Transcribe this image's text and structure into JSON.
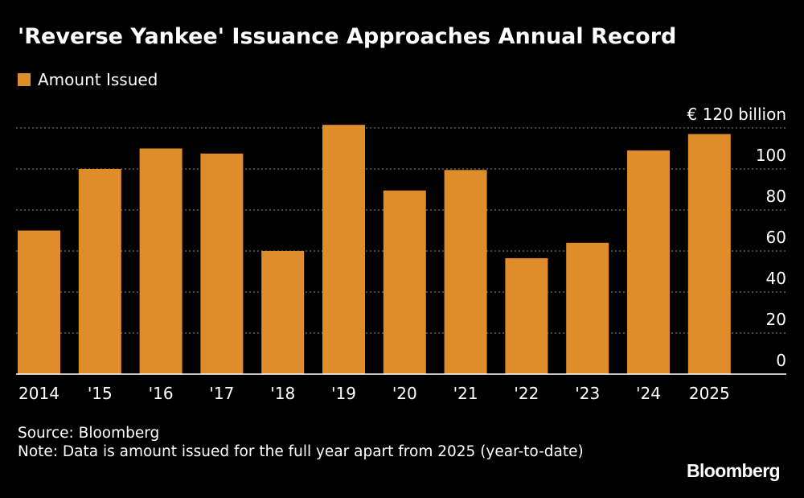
{
  "header": {
    "title": "'Reverse Yankee' Issuance Approaches Annual Record"
  },
  "footer": {
    "source": "Source: Bloomberg",
    "note": "Note: Data is amount issued for the full year apart from 2025 (year-to-date)"
  },
  "logo": {
    "text": "Bloomberg"
  },
  "chart_data": {
    "type": "bar",
    "title": "'Reverse Yankee' Issuance Approaches Annual Record",
    "categories": [
      "2014",
      "'15",
      "'16",
      "'17",
      "'18",
      "'19",
      "'20",
      "'21",
      "'22",
      "'23",
      "'24",
      "2025"
    ],
    "series": [
      {
        "name": "Amount Issued",
        "color": "#df8c2a",
        "values": [
          70,
          100,
          110,
          107.5,
          60,
          121.5,
          89.5,
          99.5,
          56.5,
          64,
          109,
          117
        ]
      }
    ],
    "y_ticks": [
      0,
      20,
      40,
      60,
      80,
      100,
      120
    ],
    "y_tick_labels": [
      "0",
      "20",
      "40",
      "60",
      "80",
      "100",
      "€ 120 billion"
    ],
    "ylim": [
      0,
      120
    ],
    "legend_position": "top-left",
    "grid": "horizontal dotted",
    "y_axis_side": "right"
  },
  "colors": {
    "background": "#000000",
    "bar": "#df8c2a",
    "text": "#ffffff",
    "gridline": "#8a8a8a",
    "baseline": "#ffffff"
  }
}
